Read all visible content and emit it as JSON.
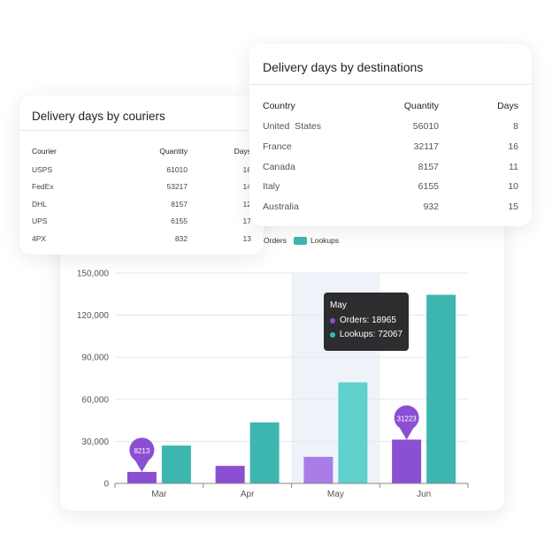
{
  "couriers_card": {
    "title": "Delivery days by couriers",
    "headers": {
      "courier": "Courier",
      "quantity": "Quantity",
      "days": "Days"
    },
    "rows": [
      {
        "courier": "USPS",
        "quantity": "61010",
        "days": "16"
      },
      {
        "courier": "FedEx",
        "quantity": "53217",
        "days": "14"
      },
      {
        "courier": "DHL",
        "quantity": "8157",
        "days": "12"
      },
      {
        "courier": "UPS",
        "quantity": "6155",
        "days": "17"
      },
      {
        "courier": "4PX",
        "quantity": "832",
        "days": "13"
      }
    ]
  },
  "destinations_card": {
    "title": "Delivery days by destinations",
    "headers": {
      "country": "Country",
      "quantity": "Quantity",
      "days": "Days"
    },
    "rows": [
      {
        "country": "United  States",
        "quantity": "56010",
        "days": "8"
      },
      {
        "country": "France",
        "quantity": "32117",
        "days": "16"
      },
      {
        "country": "Canada",
        "quantity": "8157",
        "days": "11"
      },
      {
        "country": "Italy",
        "quantity": "6155",
        "days": "10"
      },
      {
        "country": "Australia",
        "quantity": "932",
        "days": "15"
      }
    ]
  },
  "legend": {
    "orders": "Orders",
    "lookups": "Lookups"
  },
  "colors": {
    "orders": "#8b4fd3",
    "orders_highlight": "#a97de8",
    "lookups": "#3db6b0",
    "lookups_highlight": "#5fd0cb",
    "hover_band": "#eef3fa",
    "tooltip_bg": "#2d2d30"
  },
  "tooltip": {
    "title": "May",
    "orders_label": "Orders: 18965",
    "lookups_label": "Lookups: 72067"
  },
  "chart_data": {
    "type": "bar",
    "categories": [
      "Mar",
      "Apr",
      "May",
      "Jun"
    ],
    "series": [
      {
        "name": "Orders",
        "values": [
          8213,
          12500,
          18965,
          31223
        ]
      },
      {
        "name": "Lookups",
        "values": [
          27000,
          43500,
          72067,
          134500
        ]
      }
    ],
    "ylim": [
      0,
      150000
    ],
    "yticks": [
      0,
      30000,
      60000,
      90000,
      120000,
      150000
    ],
    "ytick_labels": [
      "0",
      "30,000",
      "60,000",
      "90,000",
      "120,000",
      "150,000"
    ],
    "grid": true,
    "legend_position": "top-left",
    "highlighted_category": "May",
    "markers": [
      {
        "category": "Mar",
        "series": "Orders",
        "label": "8213"
      },
      {
        "category": "Jun",
        "series": "Orders",
        "label": "31223"
      }
    ]
  }
}
